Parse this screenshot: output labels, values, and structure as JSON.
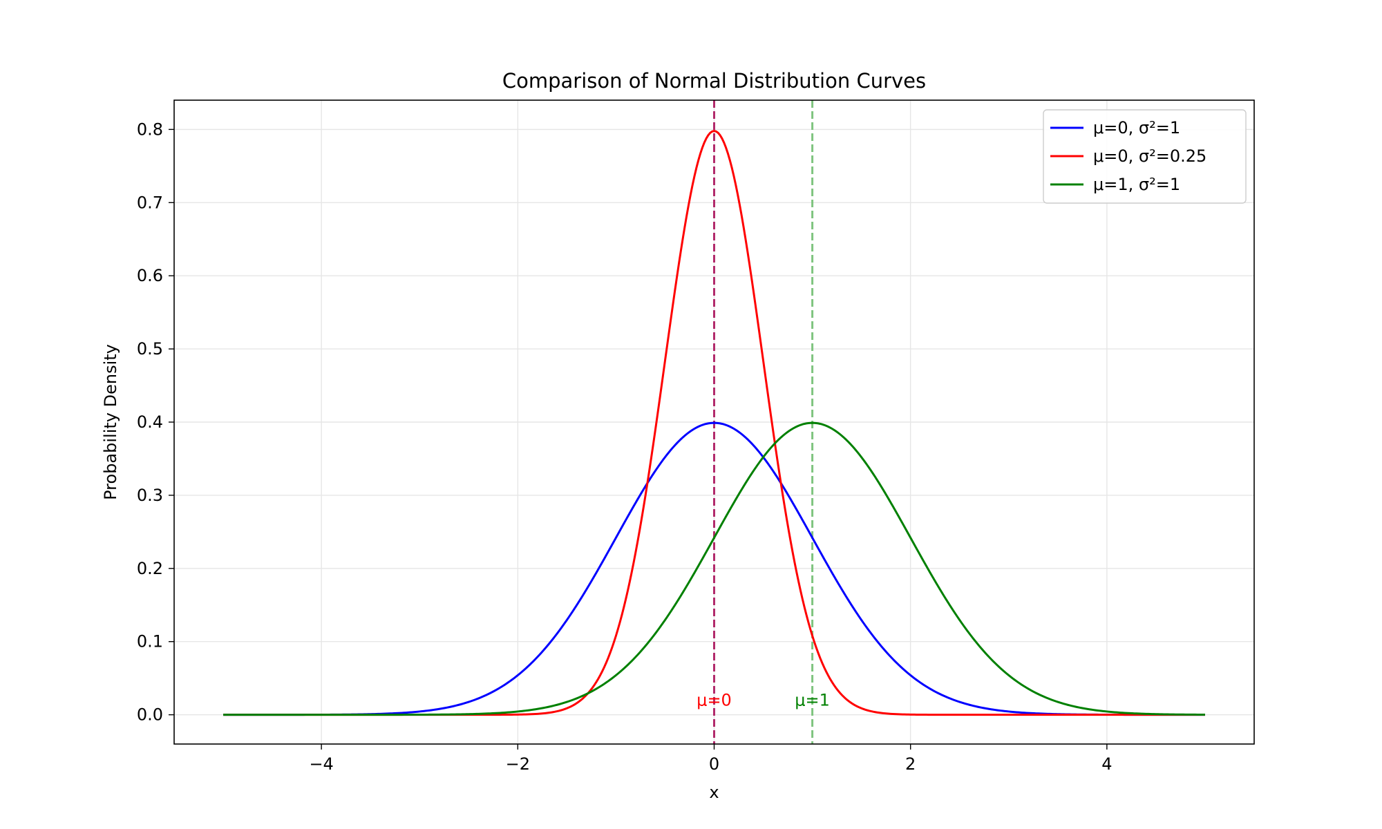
{
  "chart_data": {
    "type": "line",
    "title": "Comparison of Normal Distribution Curves",
    "xlabel": "x",
    "ylabel": "Probability Density",
    "xlim": [
      -5.5,
      5.5
    ],
    "ylim": [
      -0.04,
      0.84
    ],
    "x_ticks": [
      -4,
      -2,
      0,
      2,
      4
    ],
    "x_tick_labels": [
      "−4",
      "−2",
      "0",
      "2",
      "4"
    ],
    "y_ticks": [
      0.0,
      0.1,
      0.2,
      0.3,
      0.4,
      0.5,
      0.6,
      0.7,
      0.8
    ],
    "y_tick_labels": [
      "0.0",
      "0.1",
      "0.2",
      "0.3",
      "0.4",
      "0.5",
      "0.6",
      "0.7",
      "0.8"
    ],
    "grid": true,
    "legend_position": "top-right",
    "x_range": [
      -5,
      5
    ],
    "series": [
      {
        "name": "μ=0, σ²=1",
        "mu": 0,
        "variance": 1,
        "color": "#0000ff"
      },
      {
        "name": "μ=0, σ²=0.25",
        "mu": 0,
        "variance": 0.25,
        "color": "#ff0000"
      },
      {
        "name": "μ=1, σ²=1",
        "mu": 1,
        "variance": 1,
        "color": "#008000"
      }
    ],
    "vlines": [
      {
        "x": 0,
        "color": "#b22a6b",
        "style": "dashed"
      },
      {
        "x": 1,
        "color": "#7fc47f",
        "style": "dashed"
      }
    ],
    "annotations": [
      {
        "text": "μ=0",
        "x": 0,
        "y": 0.02,
        "color": "#ff0000"
      },
      {
        "text": "μ=1",
        "x": 1,
        "y": 0.02,
        "color": "#008000"
      }
    ]
  }
}
